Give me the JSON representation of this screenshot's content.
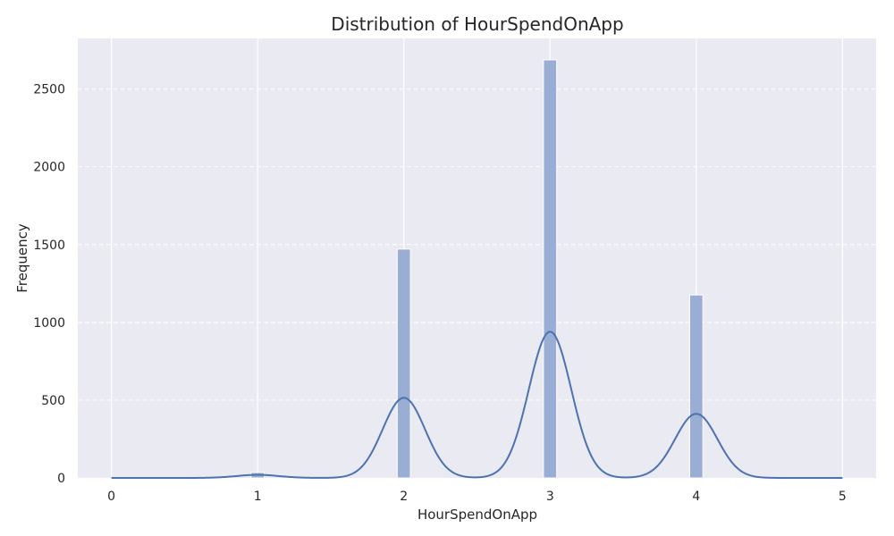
{
  "chart_data": {
    "type": "histogram",
    "title": "Distribution of HourSpendOnApp",
    "xlabel": "HourSpendOnApp",
    "ylabel": "Frequency",
    "xlim": [
      -0.23,
      5.23
    ],
    "ylim": [
      0,
      2825
    ],
    "x_ticks": [
      0,
      1,
      2,
      3,
      4,
      5
    ],
    "y_ticks": [
      0,
      500,
      1000,
      1500,
      2000,
      2500
    ],
    "grid": true,
    "bin_width": 0.1,
    "bins": [
      {
        "x": 1,
        "count": 35
      },
      {
        "x": 2,
        "count": 1471
      },
      {
        "x": 3,
        "count": 2687
      },
      {
        "x": 4,
        "count": 1176
      }
    ],
    "kde": {
      "peaks": [
        {
          "x": 1,
          "height": 20
        },
        {
          "x": 2,
          "height": 515
        },
        {
          "x": 3,
          "height": 940
        },
        {
          "x": 4,
          "height": 412
        }
      ],
      "bandwidth": 0.145
    },
    "colors": {
      "background": "#eaeaf2",
      "grid": "#ffffff",
      "bar_fill": "#9aadd4",
      "bar_edge": "#ffffff",
      "kde_line": "#4c72b0"
    }
  }
}
